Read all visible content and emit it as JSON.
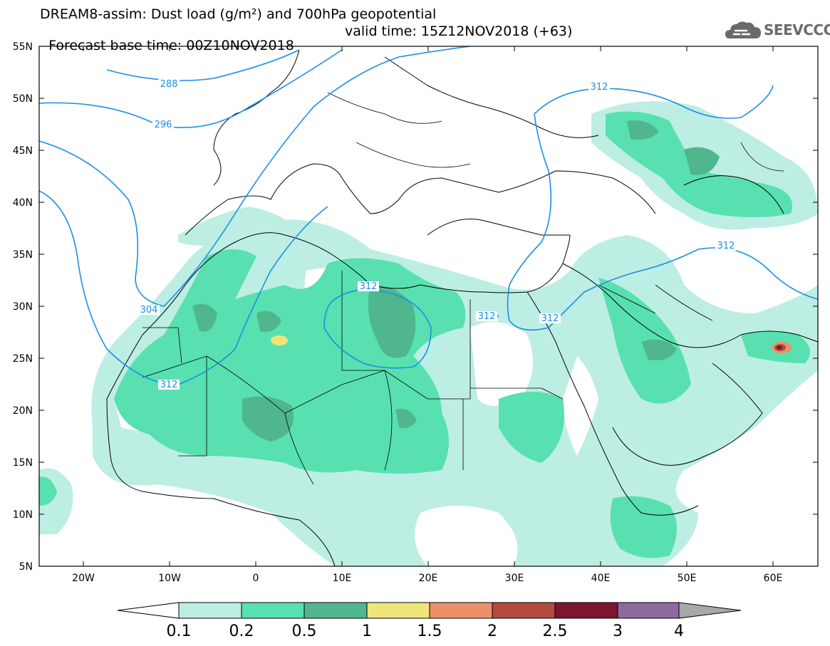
{
  "title_line1": "DREAM8-assim: Dust load (g/m²) and 700hPa geopotential",
  "title_line2_base": "Forecast base time: 00Z10NOV2018",
  "title_line2_valid": "valid time: 15Z12NOV2018 (+63)",
  "logo_text": "SEEVCCC",
  "lat_labels": [
    "55N",
    "50N",
    "45N",
    "40N",
    "35N",
    "30N",
    "25N",
    "20N",
    "15N",
    "10N",
    "5N"
  ],
  "lon_labels": [
    "20W",
    "10W",
    "0",
    "10E",
    "20E",
    "30E",
    "40E",
    "50E",
    "60E"
  ],
  "geopotential_labels": [
    "288",
    "296",
    "304",
    "312",
    "312",
    "312",
    "312",
    "312",
    "312"
  ],
  "colorbar": {
    "labels": [
      "0.1",
      "0.2",
      "0.5",
      "1",
      "1.5",
      "2",
      "2.5",
      "3",
      "4"
    ],
    "colors": [
      "#bdeee3",
      "#58e0b0",
      "#50b68e",
      "#f0e57a",
      "#ec9068",
      "#b24b3e",
      "#7c1630",
      "#8c6aa0"
    ]
  },
  "colors": {
    "contour": "#1a8fe6",
    "coast": "#000000"
  }
}
